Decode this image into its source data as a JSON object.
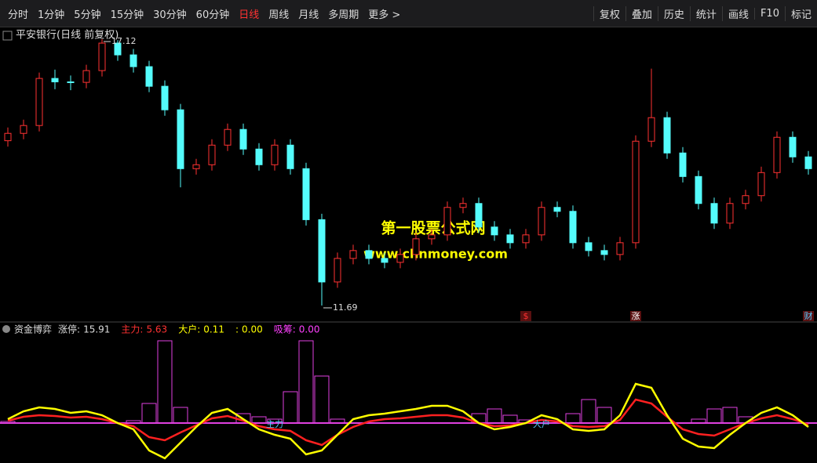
{
  "toolbar": {
    "periods": [
      "分时",
      "1分钟",
      "5分钟",
      "15分钟",
      "30分钟",
      "60分钟",
      "日线",
      "周线",
      "月线",
      "多周期",
      "更多 >"
    ],
    "active_index": 6,
    "tools": [
      "复权",
      "叠加",
      "历史",
      "统计",
      "画线",
      "F10",
      "标记"
    ]
  },
  "chart_header": {
    "title": "平安银行(日线 前复权)"
  },
  "price_panel": {
    "ylim": [
      11.37,
      17.44
    ],
    "up_color": "#ff3232",
    "down_color": "#54fcfc",
    "high_label": 17.12,
    "low_label": 11.69,
    "candles": [
      [
        15.05,
        15.32,
        14.93,
        15.2
      ],
      [
        15.2,
        15.48,
        15.08,
        15.36
      ],
      [
        15.36,
        16.44,
        15.24,
        16.32
      ],
      [
        16.32,
        16.5,
        16.1,
        16.25
      ],
      [
        16.25,
        16.38,
        16.08,
        16.24
      ],
      [
        16.24,
        16.6,
        16.12,
        16.48
      ],
      [
        16.48,
        17.12,
        16.36,
        17.04
      ],
      [
        17.04,
        17.1,
        16.68,
        16.8
      ],
      [
        16.8,
        16.92,
        16.44,
        16.56
      ],
      [
        16.56,
        16.68,
        16.04,
        16.16
      ],
      [
        16.16,
        16.28,
        15.56,
        15.68
      ],
      [
        15.68,
        15.8,
        14.1,
        14.48
      ],
      [
        14.48,
        14.68,
        14.36,
        14.56
      ],
      [
        14.56,
        15.08,
        14.44,
        14.96
      ],
      [
        14.96,
        15.4,
        14.84,
        15.28
      ],
      [
        15.28,
        15.4,
        14.76,
        14.88
      ],
      [
        14.88,
        15.0,
        14.44,
        14.56
      ],
      [
        14.56,
        15.08,
        14.44,
        14.96
      ],
      [
        14.96,
        15.08,
        14.36,
        14.48
      ],
      [
        14.48,
        14.6,
        13.32,
        13.44
      ],
      [
        13.44,
        13.56,
        11.69,
        12.17
      ],
      [
        12.17,
        12.77,
        12.05,
        12.65
      ],
      [
        12.65,
        12.93,
        12.53,
        12.81
      ],
      [
        12.81,
        12.93,
        12.53,
        12.65
      ],
      [
        12.65,
        12.77,
        12.45,
        12.57
      ],
      [
        12.57,
        12.85,
        12.45,
        12.73
      ],
      [
        12.73,
        13.17,
        12.61,
        13.05
      ],
      [
        13.05,
        13.25,
        12.93,
        13.13
      ],
      [
        13.13,
        13.81,
        13.01,
        13.69
      ],
      [
        13.69,
        13.89,
        13.57,
        13.77
      ],
      [
        13.77,
        13.89,
        13.17,
        13.29
      ],
      [
        13.29,
        13.41,
        13.01,
        13.13
      ],
      [
        13.13,
        13.25,
        12.85,
        12.97
      ],
      [
        12.97,
        13.25,
        12.85,
        13.13
      ],
      [
        13.13,
        13.81,
        13.01,
        13.69
      ],
      [
        13.69,
        13.81,
        13.49,
        13.61
      ],
      [
        13.61,
        13.73,
        12.85,
        12.97
      ],
      [
        12.97,
        13.09,
        12.69,
        12.81
      ],
      [
        12.81,
        12.93,
        12.61,
        12.73
      ],
      [
        12.73,
        13.09,
        12.61,
        12.97
      ],
      [
        12.97,
        15.16,
        12.85,
        15.04
      ],
      [
        15.04,
        16.52,
        14.92,
        15.52
      ],
      [
        15.52,
        15.64,
        14.68,
        14.8
      ],
      [
        14.8,
        14.92,
        14.2,
        14.32
      ],
      [
        14.32,
        14.44,
        13.65,
        13.77
      ],
      [
        13.77,
        13.89,
        13.25,
        13.37
      ],
      [
        13.37,
        13.89,
        13.25,
        13.77
      ],
      [
        13.77,
        14.05,
        13.65,
        13.93
      ],
      [
        13.93,
        14.52,
        13.81,
        14.4
      ],
      [
        14.4,
        15.24,
        14.28,
        15.12
      ],
      [
        15.12,
        15.24,
        14.6,
        14.72
      ],
      [
        14.72,
        14.84,
        14.36,
        14.48
      ]
    ],
    "markers": [
      {
        "text": "$",
        "index": 33,
        "color": "#ff3232"
      },
      {
        "text": "涨",
        "index": 40,
        "color": "#ffffff"
      },
      {
        "text": "财",
        "index": 51,
        "color": "#54c8fc"
      }
    ]
  },
  "watermark": {
    "line1": "第一股票公式网",
    "line2": "www.chnmoney.com"
  },
  "indicator": {
    "name": "资金博弈",
    "ylim": [
      -50,
      110
    ],
    "legend": [
      {
        "label": "涨停:",
        "value": "15.91",
        "color": "#dddddd"
      },
      {
        "label": "主力:",
        "value": "5.63",
        "color": "#ff3232"
      },
      {
        "label": "大户:",
        "value": "0.11",
        "color": "#ffff00"
      },
      {
        "label": ":",
        "value": "0.00",
        "color": "#ffff00"
      },
      {
        "label": "吸筹:",
        "value": "0.00",
        "color": "#ff40ff"
      }
    ],
    "series": [
      {
        "name": "主力",
        "color": "#ff2020",
        "label_index": 17,
        "values": [
          3,
          8,
          10,
          9,
          7,
          8,
          5,
          0,
          -4,
          -18,
          -22,
          -12,
          -3,
          6,
          9,
          3,
          -4,
          -8,
          -10,
          -22,
          -28,
          -15,
          -5,
          2,
          5,
          6,
          8,
          10,
          10,
          7,
          0,
          -4,
          -3,
          0,
          4,
          2,
          -4,
          -5,
          -4,
          4,
          30,
          25,
          8,
          -8,
          -14,
          -16,
          -8,
          0,
          6,
          10,
          5,
          -2
        ]
      },
      {
        "name": "大户",
        "color": "#ffff00",
        "label_index": 34,
        "values": [
          5,
          15,
          20,
          18,
          13,
          15,
          10,
          0,
          -8,
          -35,
          -45,
          -25,
          -5,
          13,
          18,
          5,
          -8,
          -15,
          -20,
          -40,
          -35,
          -15,
          5,
          10,
          12,
          15,
          18,
          22,
          22,
          15,
          0,
          -8,
          -5,
          0,
          10,
          5,
          -8,
          -10,
          -8,
          10,
          50,
          45,
          10,
          -20,
          -30,
          -32,
          -15,
          0,
          13,
          20,
          10,
          -5
        ]
      }
    ],
    "bars": {
      "color": "#e040e0",
      "values": [
        2,
        0,
        0,
        0,
        0,
        0,
        0,
        0,
        3,
        25,
        105,
        20,
        0,
        0,
        0,
        12,
        8,
        5,
        40,
        105,
        60,
        5,
        0,
        0,
        0,
        0,
        0,
        0,
        0,
        0,
        12,
        18,
        10,
        4,
        0,
        0,
        12,
        30,
        20,
        0,
        0,
        0,
        0,
        0,
        5,
        18,
        20,
        8,
        0,
        0,
        0,
        0
      ]
    }
  }
}
